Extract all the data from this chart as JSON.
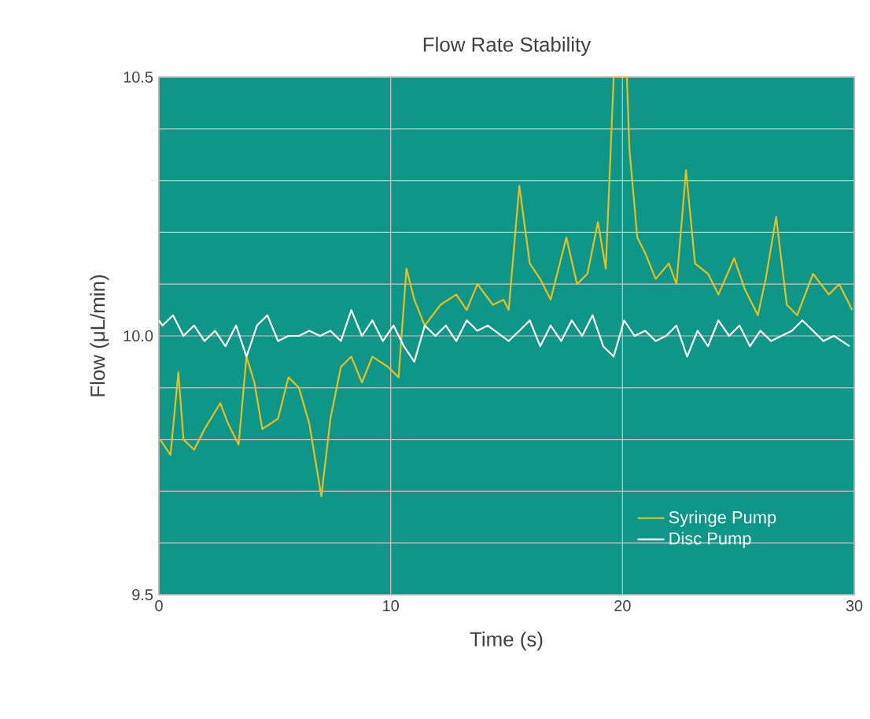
{
  "chart_data": {
    "type": "line",
    "title": "Flow Rate Stability",
    "xlabel": "Time (s)",
    "ylabel": "Flow (μL/min)",
    "xlim": [
      0,
      30
    ],
    "xticks": [
      0,
      10,
      20,
      30
    ],
    "ylim": [
      9.5,
      10.5
    ],
    "yticks": [
      9.5,
      {
        "value": 9.6,
        "label": null
      },
      {
        "value": 9.7,
        "label": null
      },
      {
        "value": 9.8,
        "label": null
      },
      {
        "value": 9.9,
        "label": null
      },
      {
        "value": 10,
        "label": "10.0"
      },
      {
        "value": 10.1,
        "label": null
      },
      {
        "value": 10.2,
        "label": null
      },
      {
        "value": 10.3,
        "label": null
      },
      {
        "value": 10.4,
        "label": null
      },
      10.5
    ],
    "grid": true,
    "legend": "bottom right",
    "marker": "none",
    "line_style": "solid",
    "series": [
      {
        "name": "Syringe Pump",
        "color": "#e8c01a",
        "x": [
          0.05,
          0.5,
          0.84,
          1.06,
          1.52,
          1.97,
          2.65,
          2.99,
          3.44,
          3.78,
          4.12,
          4.46,
          5.14,
          5.59,
          6.04,
          6.49,
          7.01,
          7.4,
          7.85,
          8.3,
          8.76,
          9.21,
          9.89,
          10.34,
          10.68,
          11.02,
          11.47,
          12.15,
          12.83,
          13.28,
          13.74,
          14.41,
          14.87,
          15.09,
          15.55,
          16.0,
          16.45,
          16.9,
          17.58,
          18.04,
          18.49,
          18.94,
          19.28,
          19.62,
          20.19,
          20.3,
          20.64,
          20.98,
          21.43,
          22.0,
          22.33,
          22.74,
          23.13,
          23.69,
          24.14,
          24.82,
          25.28,
          25.84,
          26.18,
          26.63,
          27.09,
          27.54,
          28.22,
          28.9,
          29.35,
          29.91
        ],
        "values": [
          9.8,
          9.77,
          9.93,
          9.8,
          9.78,
          9.82,
          9.87,
          9.83,
          9.79,
          9.96,
          9.91,
          9.82,
          9.84,
          9.92,
          9.9,
          9.83,
          9.69,
          9.84,
          9.94,
          9.96,
          9.91,
          9.96,
          9.94,
          9.92,
          10.13,
          10.07,
          10.02,
          10.06,
          10.08,
          10.05,
          10.1,
          10.06,
          10.07,
          10.05,
          10.29,
          10.14,
          10.11,
          10.07,
          10.19,
          10.1,
          10.12,
          10.22,
          10.13,
          10.5,
          10.5,
          10.36,
          10.19,
          10.16,
          10.11,
          10.14,
          10.1,
          10.32,
          10.14,
          10.12,
          10.08,
          10.15,
          10.09,
          10.04,
          10.11,
          10.23,
          10.06,
          10.04,
          10.12,
          10.08,
          10.1,
          10.05
        ]
      },
      {
        "name": "Disc Pump",
        "color": "#ffffff",
        "x": [
          0,
          0.16,
          0.61,
          1.06,
          1.52,
          1.97,
          2.42,
          2.87,
          3.33,
          3.78,
          4.23,
          4.68,
          5.14,
          5.59,
          6.04,
          6.49,
          6.95,
          7.4,
          7.85,
          8.3,
          8.76,
          9.21,
          9.66,
          10.12,
          10.57,
          11.02,
          11.47,
          11.93,
          12.38,
          12.83,
          13.28,
          13.74,
          14.19,
          15.09,
          15.55,
          16.0,
          16.45,
          16.9,
          17.36,
          17.81,
          18.26,
          18.71,
          19.17,
          19.62,
          20.07,
          20.52,
          20.98,
          21.43,
          21.88,
          22.33,
          22.79,
          23.24,
          23.69,
          24.14,
          24.6,
          25.05,
          25.5,
          25.95,
          26.41,
          26.86,
          27.31,
          27.76,
          28.22,
          28.67,
          29.12,
          29.8
        ],
        "values": [
          10.03,
          10.02,
          10.04,
          10.0,
          10.02,
          9.99,
          10.01,
          9.98,
          10.02,
          9.96,
          10.02,
          10.04,
          9.99,
          10.0,
          10.0,
          10.01,
          10.0,
          10.01,
          9.99,
          10.05,
          10.0,
          10.03,
          9.99,
          10.02,
          9.98,
          9.95,
          10.02,
          10.0,
          10.02,
          9.99,
          10.03,
          10.01,
          10.02,
          9.99,
          10.01,
          10.03,
          9.98,
          10.02,
          9.99,
          10.03,
          10.0,
          10.04,
          9.98,
          9.96,
          10.03,
          10.0,
          10.01,
          9.99,
          10.0,
          10.02,
          9.96,
          10.01,
          9.98,
          10.03,
          10.0,
          10.02,
          9.98,
          10.01,
          9.99,
          10.0,
          10.01,
          10.03,
          10.01,
          9.99,
          10.0,
          9.98
        ]
      }
    ]
  }
}
